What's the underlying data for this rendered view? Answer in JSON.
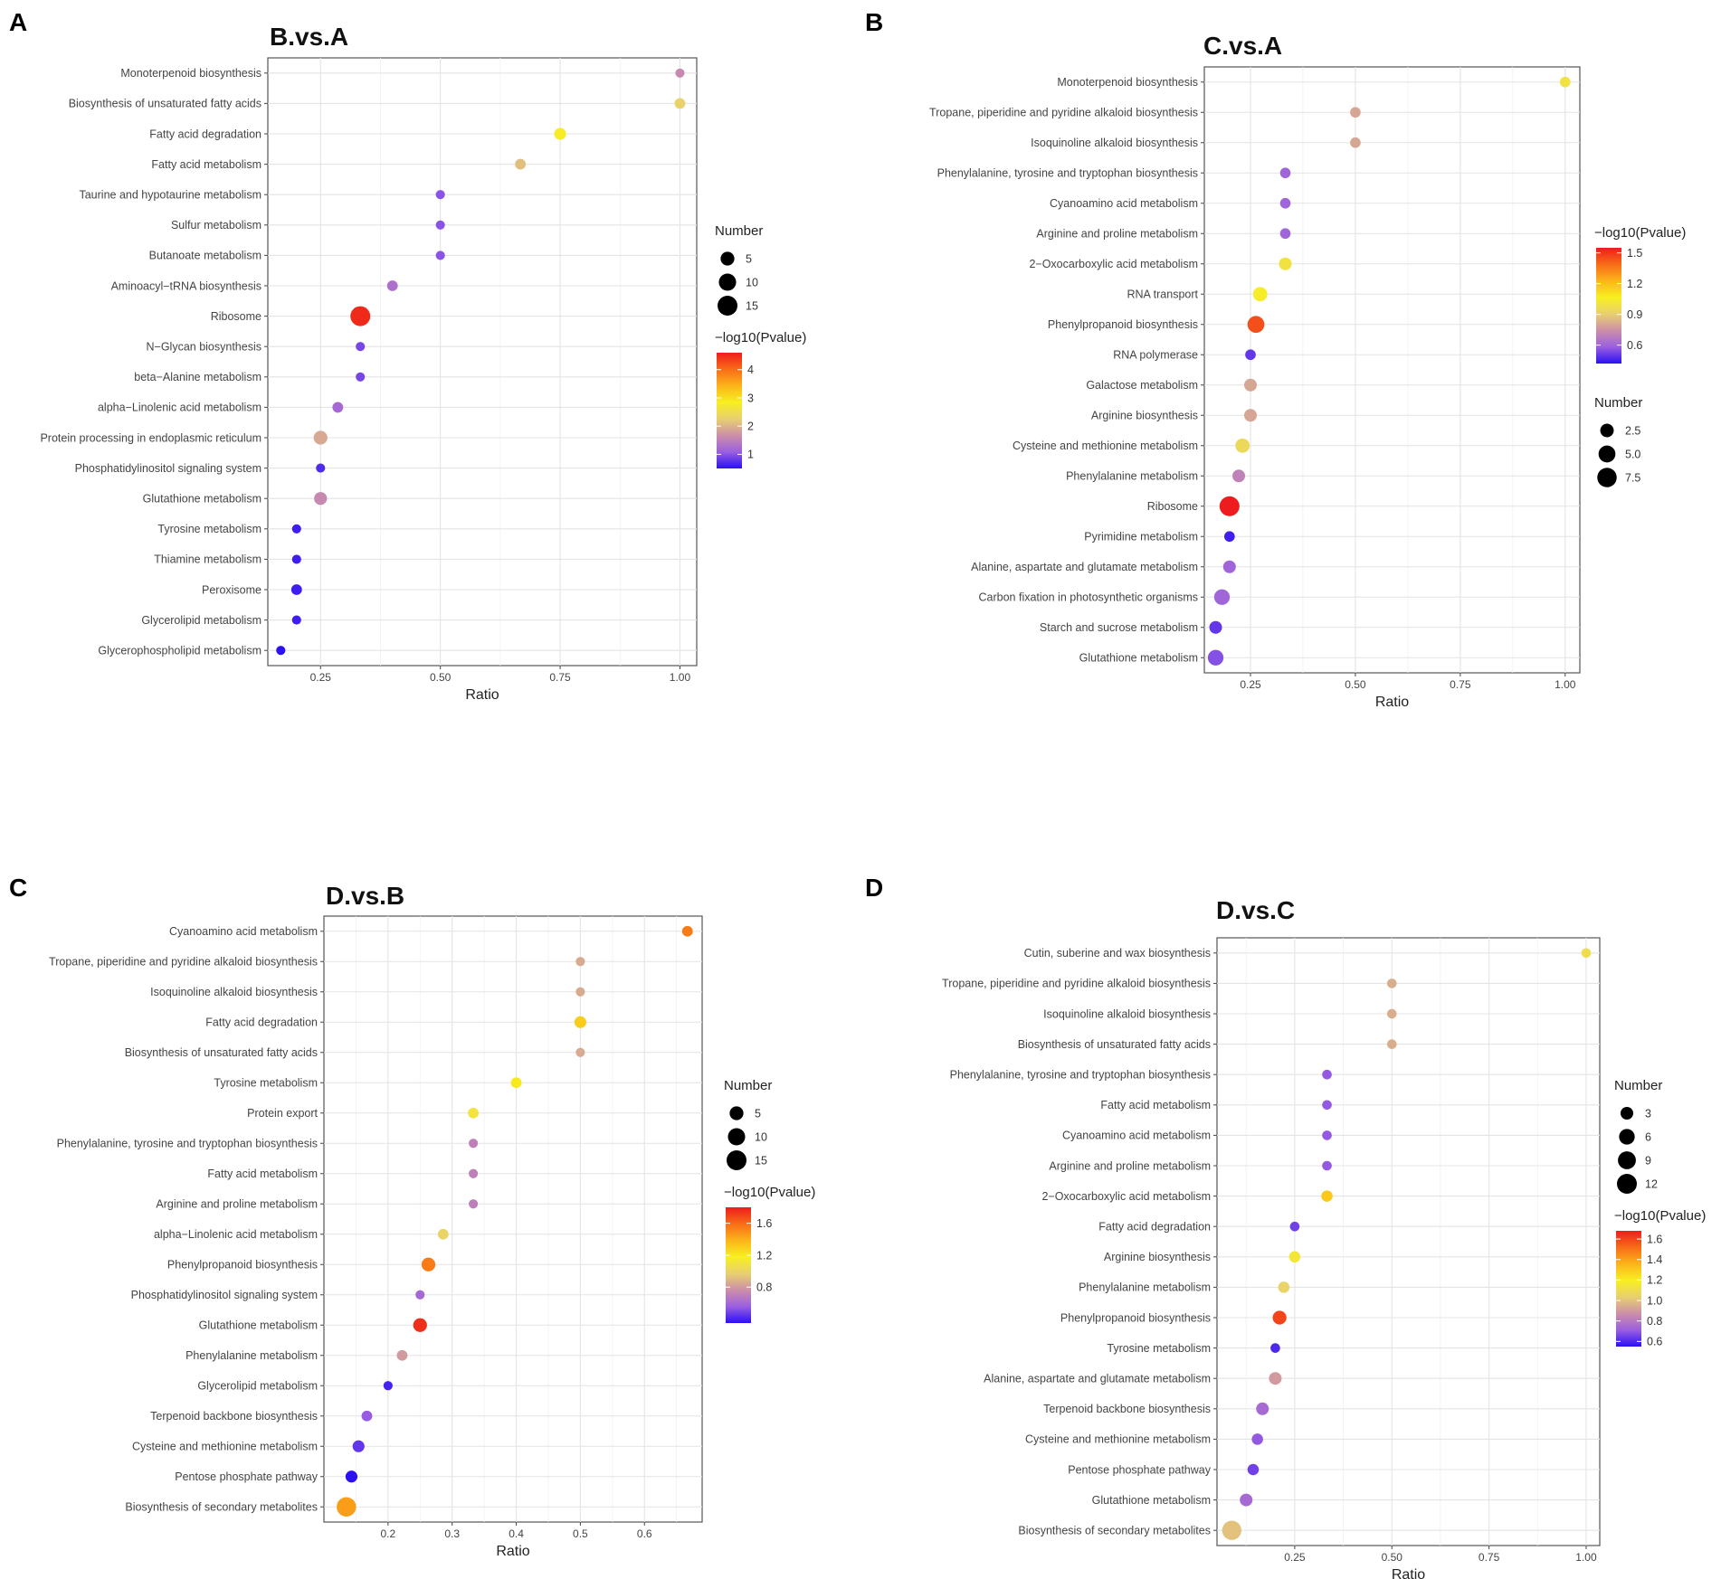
{
  "chart_data": [
    {
      "panel": "A",
      "title": "B.vs.A",
      "type": "scatter",
      "xlabel": "Ratio",
      "xlim": [
        0.14,
        1.035
      ],
      "xticks": [
        0.25,
        0.5,
        0.75,
        1.0
      ],
      "xtick_labels": [
        "0.25",
        "0.50",
        "0.75",
        "1.00"
      ],
      "categories": [
        "Monoterpenoid biosynthesis",
        "Biosynthesis of unsaturated fatty acids",
        "Fatty acid degradation",
        "Fatty acid metabolism",
        "Taurine and hypotaurine metabolism",
        "Sulfur metabolism",
        "Butanoate metabolism",
        "Aminoacyl−tRNA biosynthesis",
        "Ribosome",
        "N−Glycan biosynthesis",
        "beta−Alanine metabolism",
        "alpha−Linolenic acid metabolism",
        "Protein processing in endoplasmic reticulum",
        "Phosphatidylinositol signaling system",
        "Glutathione metabolism",
        "Tyrosine metabolism",
        "Thiamine metabolism",
        "Peroxisome",
        "Glycerolipid metabolism",
        "Glycerophospholipid metabolism"
      ],
      "ratio": [
        1.0,
        1.0,
        0.75,
        0.667,
        0.5,
        0.5,
        0.5,
        0.4,
        0.333,
        0.333,
        0.333,
        0.286,
        0.25,
        0.25,
        0.25,
        0.2,
        0.2,
        0.2,
        0.2,
        0.167
      ],
      "number": [
        1,
        2,
        3,
        2,
        1,
        1,
        1,
        2,
        15,
        1,
        1,
        2,
        5,
        1,
        4,
        1,
        1,
        2,
        1,
        1
      ],
      "pvalue": [
        1.6,
        2.3,
        2.8,
        2.1,
        1.0,
        1.0,
        1.0,
        1.3,
        4.5,
        0.9,
        0.9,
        1.2,
        1.9,
        0.7,
        1.6,
        0.6,
        0.6,
        0.6,
        0.6,
        0.5
      ],
      "size_legend": {
        "title": "Number",
        "values": [
          5,
          10,
          15
        ],
        "labels": [
          "5",
          "10",
          "15"
        ]
      },
      "color_legend": {
        "title": "−log10(Pvalue)",
        "min": 0.5,
        "max": 4.6,
        "ticks": [
          1,
          2,
          3,
          4
        ],
        "labels": [
          "1",
          "2",
          "3",
          "4"
        ]
      },
      "legend_order": [
        "size",
        "color"
      ]
    },
    {
      "panel": "B",
      "title": "C.vs.A",
      "type": "scatter",
      "xlabel": "Ratio",
      "xlim": [
        0.14,
        1.035
      ],
      "xticks": [
        0.25,
        0.5,
        0.75,
        1.0
      ],
      "xtick_labels": [
        "0.25",
        "0.50",
        "0.75",
        "1.00"
      ],
      "categories": [
        "Monoterpenoid biosynthesis",
        "Tropane, piperidine and pyridine alkaloid biosynthesis",
        "Isoquinoline alkaloid biosynthesis",
        "Phenylalanine, tyrosine and tryptophan biosynthesis",
        "Cyanoamino acid metabolism",
        "Arginine and proline metabolism",
        "2−Oxocarboxylic acid metabolism",
        "RNA transport",
        "Phenylpropanoid biosynthesis",
        "RNA polymerase",
        "Galactose metabolism",
        "Arginine biosynthesis",
        "Cysteine and methionine metabolism",
        "Phenylalanine metabolism",
        "Ribosome",
        "Pyrimidine metabolism",
        "Alanine, aspartate and glutamate metabolism",
        "Carbon fixation in photosynthetic organisms",
        "Starch and sucrose metabolism",
        "Glutathione metabolism"
      ],
      "ratio": [
        1.0,
        0.5,
        0.5,
        0.333,
        0.333,
        0.333,
        0.333,
        0.273,
        0.263,
        0.25,
        0.25,
        0.25,
        0.231,
        0.222,
        0.2,
        0.2,
        0.2,
        0.182,
        0.167,
        0.167
      ],
      "number": [
        1,
        1,
        1,
        1,
        1,
        1,
        2,
        3,
        5,
        1,
        2,
        2,
        3,
        2,
        8,
        1,
        2,
        4,
        2,
        4
      ],
      "pvalue": [
        1.0,
        0.8,
        0.8,
        0.6,
        0.6,
        0.6,
        1.0,
        1.05,
        1.45,
        0.5,
        0.8,
        0.8,
        0.95,
        0.7,
        1.55,
        0.45,
        0.6,
        0.6,
        0.5,
        0.55
      ],
      "size_legend": {
        "title": "Number",
        "values": [
          2.5,
          5.0,
          7.5
        ],
        "labels": [
          "2.5",
          "5.0",
          "7.5"
        ]
      },
      "color_legend": {
        "title": "−log10(Pvalue)",
        "min": 0.42,
        "max": 1.55,
        "ticks": [
          0.6,
          0.9,
          1.2,
          1.5
        ],
        "labels": [
          "0.6",
          "0.9",
          "1.2",
          "1.5"
        ]
      },
      "legend_order": [
        "color",
        "size"
      ]
    },
    {
      "panel": "C",
      "title": "D.vs.B",
      "type": "scatter",
      "xlabel": "Ratio",
      "xlim": [
        0.1,
        0.69
      ],
      "xticks": [
        0.2,
        0.3,
        0.4,
        0.5,
        0.6
      ],
      "xtick_labels": [
        "0.2",
        "0.3",
        "0.4",
        "0.5",
        "0.6"
      ],
      "categories": [
        "Cyanoamino acid metabolism",
        "Tropane, piperidine and pyridine alkaloid biosynthesis",
        "Isoquinoline alkaloid biosynthesis",
        "Fatty acid degradation",
        "Biosynthesis of unsaturated fatty acids",
        "Tyrosine metabolism",
        "Protein export",
        "Phenylalanine, tyrosine and tryptophan biosynthesis",
        "Fatty acid metabolism",
        "Arginine and proline metabolism",
        "alpha−Linolenic acid metabolism",
        "Phenylpropanoid biosynthesis",
        "Phosphatidylinositol signaling system",
        "Glutathione metabolism",
        "Phenylalanine metabolism",
        "Glycerolipid metabolism",
        "Terpenoid backbone biosynthesis",
        "Cysteine and methionine metabolism",
        "Pentose phosphate pathway",
        "Biosynthesis of secondary metabolites"
      ],
      "ratio": [
        0.667,
        0.5,
        0.5,
        0.5,
        0.5,
        0.4,
        0.333,
        0.333,
        0.333,
        0.333,
        0.286,
        0.263,
        0.25,
        0.25,
        0.222,
        0.2,
        0.167,
        0.154,
        0.143,
        0.135
      ],
      "number": [
        2,
        1,
        1,
        3,
        1,
        2,
        2,
        1,
        1,
        1,
        2,
        5,
        1,
        5,
        2,
        1,
        2,
        3,
        3,
        14
      ],
      "pvalue": [
        1.55,
        0.85,
        0.85,
        1.3,
        0.85,
        1.2,
        1.1,
        0.7,
        0.7,
        0.7,
        1.0,
        1.55,
        0.6,
        1.75,
        0.8,
        0.4,
        0.55,
        0.45,
        0.35,
        1.45
      ],
      "size_legend": {
        "title": "Number",
        "values": [
          5,
          10,
          15
        ],
        "labels": [
          "5",
          "10",
          "15"
        ]
      },
      "color_legend": {
        "title": "−log10(Pvalue)",
        "min": 0.35,
        "max": 1.8,
        "ticks": [
          0.8,
          1.2,
          1.6
        ],
        "labels": [
          "0.8",
          "1.2",
          "1.6"
        ]
      },
      "legend_order": [
        "size",
        "color"
      ]
    },
    {
      "panel": "D",
      "title": "D.vs.C",
      "type": "scatter",
      "xlabel": "Ratio",
      "xlim": [
        0.05,
        1.035
      ],
      "xticks": [
        0.25,
        0.5,
        0.75,
        1.0
      ],
      "xtick_labels": [
        "0.25",
        "0.50",
        "0.75",
        "1.00"
      ],
      "categories": [
        "Cutin, suberine and wax biosynthesis",
        "Tropane, piperidine and pyridine alkaloid biosynthesis",
        "Isoquinoline alkaloid biosynthesis",
        "Biosynthesis of unsaturated fatty acids",
        "Phenylalanine, tyrosine and tryptophan biosynthesis",
        "Fatty acid metabolism",
        "Cyanoamino acid metabolism",
        "Arginine and proline metabolism",
        "2−Oxocarboxylic acid metabolism",
        "Fatty acid degradation",
        "Arginine biosynthesis",
        "Phenylalanine metabolism",
        "Phenylpropanoid biosynthesis",
        "Tyrosine metabolism",
        "Alanine, aspartate and glutamate metabolism",
        "Terpenoid backbone biosynthesis",
        "Cysteine and methionine metabolism",
        "Pentose phosphate pathway",
        "Glutathione metabolism",
        "Biosynthesis of secondary metabolites"
      ],
      "ratio": [
        1.0,
        0.5,
        0.5,
        0.5,
        0.333,
        0.333,
        0.333,
        0.333,
        0.333,
        0.25,
        0.25,
        0.222,
        0.211,
        0.2,
        0.2,
        0.167,
        0.154,
        0.143,
        0.125,
        0.088
      ],
      "number": [
        1,
        1,
        1,
        1,
        1,
        1,
        1,
        1,
        2,
        1,
        2,
        2,
        4,
        1,
        3,
        3,
        2,
        2,
        3,
        11
      ],
      "pvalue": [
        1.1,
        0.95,
        0.95,
        0.95,
        0.7,
        0.7,
        0.7,
        0.7,
        1.3,
        0.65,
        1.15,
        1.05,
        1.6,
        0.6,
        0.9,
        0.75,
        0.7,
        0.65,
        0.75,
        1.0
      ],
      "size_legend": {
        "title": "Number",
        "values": [
          3,
          6,
          9,
          12
        ],
        "labels": [
          "3",
          "6",
          "9",
          "12"
        ]
      },
      "color_legend": {
        "title": "−log10(Pvalue)",
        "min": 0.55,
        "max": 1.68,
        "ticks": [
          0.6,
          0.8,
          1.0,
          1.2,
          1.4,
          1.6
        ],
        "labels": [
          "0.6",
          "0.8",
          "1.0",
          "1.2",
          "1.4",
          "1.6"
        ]
      },
      "legend_order": [
        "size",
        "color"
      ]
    }
  ],
  "palette": [
    "#2a10f2",
    "#9b5fe0",
    "#cc8fa8",
    "#e8d070",
    "#f8ef20",
    "#fbb41a",
    "#f86c18",
    "#ee1c1c"
  ]
}
